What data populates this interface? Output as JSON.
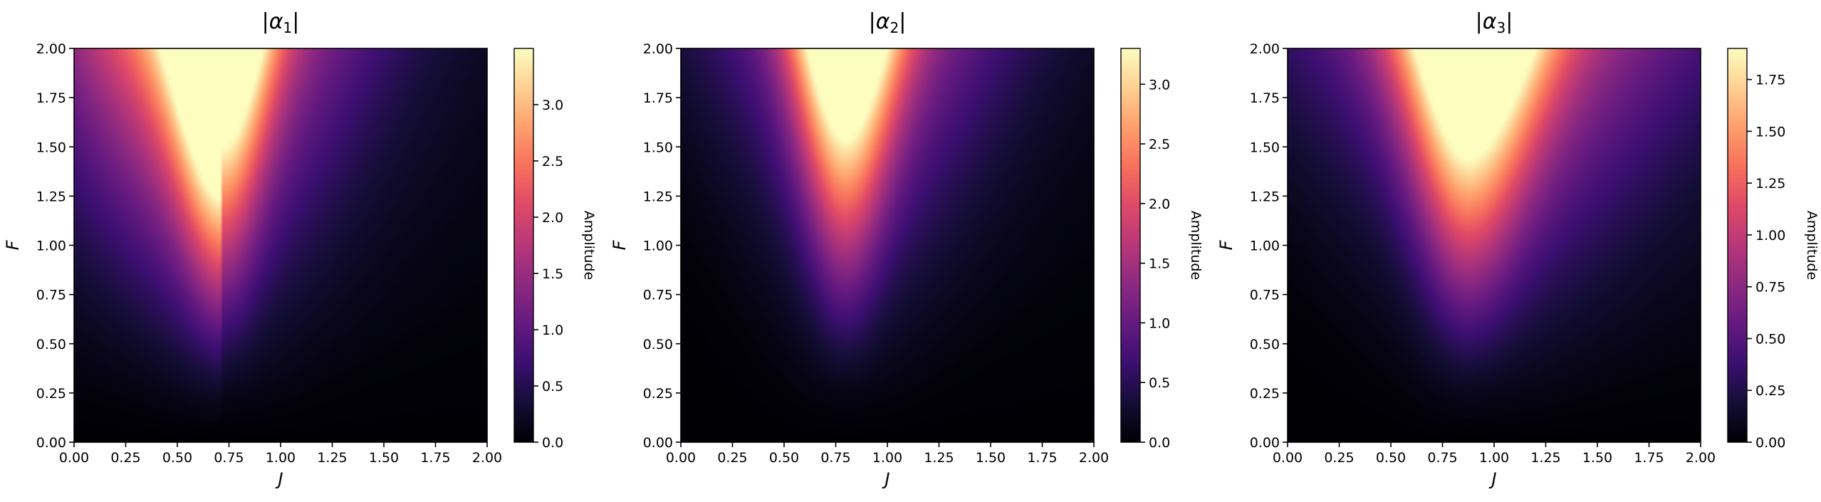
{
  "chart_data": [
    {
      "type": "heatmap",
      "title_symbol": "α",
      "title_subscript": "1",
      "title": "|α1|",
      "xlabel": "J",
      "ylabel": "F",
      "xlim": [
        0,
        2
      ],
      "ylim": [
        0,
        2
      ],
      "x_ticks": [
        "0.00",
        "0.25",
        "0.50",
        "0.75",
        "1.00",
        "1.25",
        "1.50",
        "1.75",
        "2.00"
      ],
      "y_ticks": [
        "0.00",
        "0.25",
        "0.50",
        "0.75",
        "1.00",
        "1.25",
        "1.50",
        "1.75",
        "2.00"
      ],
      "colormap": "magma",
      "colorbar": {
        "label": "Amplitude",
        "vmin": 0,
        "vmax": 3.5,
        "ticks": [
          "0.0",
          "0.5",
          "1.0",
          "1.5",
          "2.0",
          "2.5",
          "3.0"
        ]
      },
      "peak": {
        "J": 0.72,
        "F": 2.0,
        "value": 3.5
      },
      "field": {
        "J0": 0.72,
        "w0": 0.11,
        "wk": 0.12,
        "leftAmp": 0.55,
        "leftPow": 1.5,
        "bgDecay": 1.2,
        "bgAmp": 0.25,
        "bgPow": 1.2,
        "F0": 0.45
      }
    },
    {
      "type": "heatmap",
      "title_symbol": "α",
      "title_subscript": "2",
      "title": "|α2|",
      "xlabel": "J",
      "ylabel": "F",
      "xlim": [
        0,
        2
      ],
      "ylim": [
        0,
        2
      ],
      "x_ticks": [
        "0.00",
        "0.25",
        "0.50",
        "0.75",
        "1.00",
        "1.25",
        "1.50",
        "1.75",
        "2.00"
      ],
      "y_ticks": [
        "0.00",
        "0.25",
        "0.50",
        "0.75",
        "1.00",
        "1.25",
        "1.50",
        "1.75",
        "2.00"
      ],
      "colormap": "magma",
      "colorbar": {
        "label": "Amplitude",
        "vmin": 0,
        "vmax": 3.3,
        "ticks": [
          "0.0",
          "0.5",
          "1.0",
          "1.5",
          "2.0",
          "2.5",
          "3.0"
        ]
      },
      "peak": {
        "J": 0.8,
        "F": 2.0,
        "value": 3.3
      },
      "field": {
        "J0": 0.8,
        "w0": 0.1,
        "wk": 0.15,
        "leftAmp": 0.0,
        "leftPow": 1.5,
        "bgDecay": 1.3,
        "bgAmp": 0.2,
        "bgPow": 1.3,
        "F0": 0.5
      }
    },
    {
      "type": "heatmap",
      "title_symbol": "α",
      "title_subscript": "3",
      "title": "|α3|",
      "xlabel": "J",
      "ylabel": "F",
      "xlim": [
        0,
        2
      ],
      "ylim": [
        0,
        2
      ],
      "x_ticks": [
        "0.00",
        "0.25",
        "0.50",
        "0.75",
        "1.00",
        "1.25",
        "1.50",
        "1.75",
        "2.00"
      ],
      "y_ticks": [
        "0.00",
        "0.25",
        "0.50",
        "0.75",
        "1.00",
        "1.25",
        "1.50",
        "1.75",
        "2.00"
      ],
      "colormap": "magma",
      "colorbar": {
        "label": "Amplitude",
        "vmin": 0,
        "vmax": 1.9,
        "ticks": [
          "0.00",
          "0.25",
          "0.50",
          "0.75",
          "1.00",
          "1.25",
          "1.50",
          "1.75"
        ]
      },
      "peak": {
        "J": 0.88,
        "F": 2.0,
        "value": 1.9
      },
      "field": {
        "J0": 0.88,
        "w0": 0.13,
        "wk": 0.22,
        "leftAmp": 0.0,
        "leftPow": 1.5,
        "bgDecay": 1.0,
        "bgAmp": 0.35,
        "bgPow": 1.2,
        "F0": 0.5
      }
    }
  ]
}
